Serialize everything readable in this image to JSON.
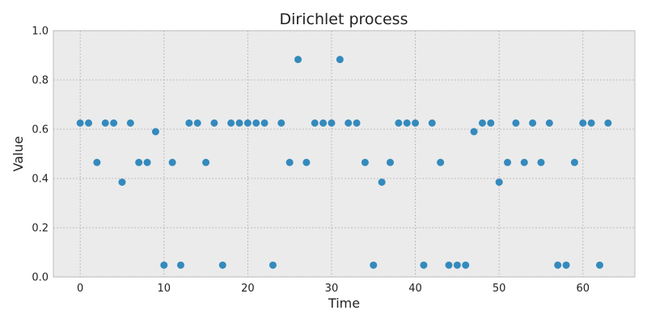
{
  "chart_data": {
    "type": "scatter",
    "title": "Dirichlet process",
    "xlabel": "Time",
    "ylabel": "Value",
    "xlim": [
      -3.2,
      66.2
    ],
    "ylim": [
      0.0,
      1.0
    ],
    "xticks": [
      0,
      10,
      20,
      30,
      40,
      50,
      60
    ],
    "xtick_labels": [
      "0",
      "10",
      "20",
      "30",
      "40",
      "50",
      "60"
    ],
    "yticks": [
      0.0,
      0.2,
      0.4,
      0.6,
      0.8,
      1.0
    ],
    "ytick_labels": [
      "0.0",
      "0.2",
      "0.4",
      "0.6",
      "0.8",
      "1.0"
    ],
    "grid": true,
    "x": [
      0,
      1,
      2,
      3,
      4,
      5,
      6,
      7,
      8,
      9,
      10,
      11,
      12,
      13,
      14,
      15,
      16,
      17,
      18,
      19,
      20,
      21,
      22,
      23,
      24,
      25,
      26,
      27,
      28,
      29,
      30,
      31,
      32,
      33,
      34,
      35,
      36,
      37,
      38,
      39,
      40,
      41,
      42,
      43,
      44,
      45,
      46,
      47,
      48,
      49,
      50,
      51,
      52,
      53,
      54,
      55,
      56,
      57,
      58,
      59,
      60,
      61,
      62,
      63
    ],
    "y": [
      0.625,
      0.625,
      0.465,
      0.625,
      0.625,
      0.385,
      0.625,
      0.465,
      0.465,
      0.59,
      0.048,
      0.465,
      0.048,
      0.625,
      0.625,
      0.465,
      0.625,
      0.048,
      0.625,
      0.625,
      0.625,
      0.625,
      0.625,
      0.048,
      0.625,
      0.465,
      0.883,
      0.465,
      0.625,
      0.625,
      0.625,
      0.883,
      0.625,
      0.625,
      0.465,
      0.048,
      0.385,
      0.465,
      0.625,
      0.625,
      0.625,
      0.048,
      0.625,
      0.465,
      0.048,
      0.048,
      0.048,
      0.59,
      0.625,
      0.625,
      0.385,
      0.465,
      0.625,
      0.465,
      0.625,
      0.465,
      0.625,
      0.048,
      0.048,
      0.465,
      0.625,
      0.625,
      0.048,
      0.625
    ]
  },
  "colors": {
    "marker": "#348abd",
    "plot_background": "#ebebeb",
    "grid": "#b0b0b0",
    "frame": "#bcbcbc"
  }
}
